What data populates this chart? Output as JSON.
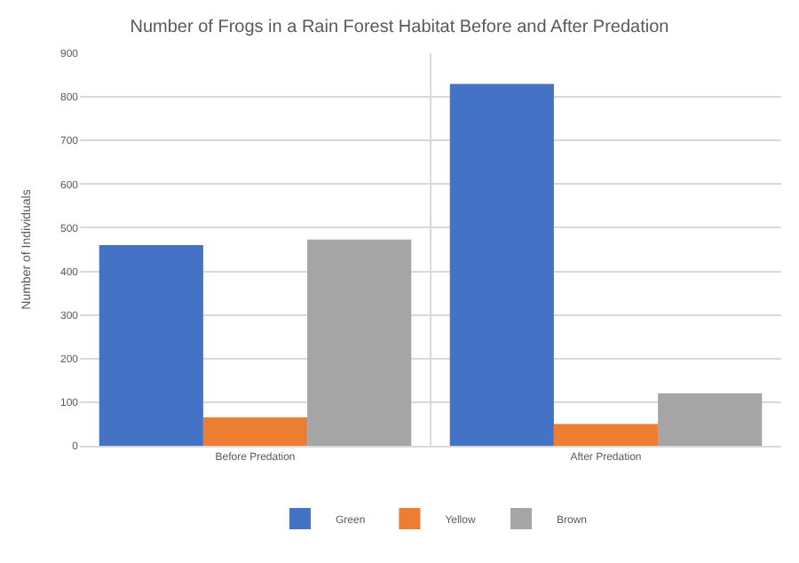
{
  "chart_data": {
    "type": "bar",
    "title": "Number of Frogs in a Rain Forest Habitat Before and After Predation",
    "ylabel": "Number of Individuals",
    "categories": [
      "Before Predation",
      "After Predation"
    ],
    "series": [
      {
        "name": "Green",
        "color": "#4472c4",
        "values": [
          460,
          830
        ]
      },
      {
        "name": "Yellow",
        "color": "#ed7d31",
        "values": [
          65,
          50
        ]
      },
      {
        "name": "Brown",
        "color": "#a5a5a5",
        "values": [
          473,
          120
        ]
      }
    ],
    "ylim": [
      0,
      900
    ],
    "yticks": [
      0,
      100,
      200,
      300,
      400,
      500,
      600,
      700,
      800,
      900
    ],
    "grid": true,
    "legend": "bottom"
  }
}
